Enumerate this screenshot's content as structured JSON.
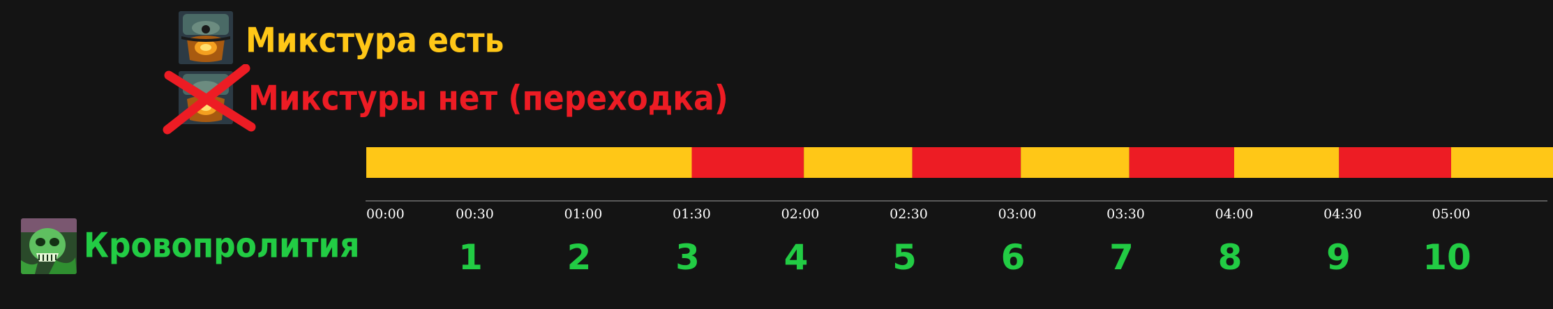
{
  "legend": {
    "has_mixture_label": "Микстура есть",
    "no_mixture_label": "Микстуры нет (переходка)",
    "has_mixture_icon": "mixture-cauldron-icon",
    "no_mixture_icon": "mixture-cauldron-crossed-icon",
    "colors": {
      "has": "#ffc717",
      "none": "#ed1c24"
    }
  },
  "ability": {
    "label": "Кровопролития",
    "icon": "bloodshed-skull-icon",
    "color": "#22cc44"
  },
  "chart_data": {
    "type": "timeline",
    "x_unit": "mm:ss",
    "xlim": [
      "00:00",
      "05:45"
    ],
    "ticks": [
      "00:00",
      "00:30",
      "01:00",
      "01:30",
      "02:00",
      "02:30",
      "03:00",
      "03:30",
      "04:00",
      "04:30",
      "05:00"
    ],
    "segments": [
      {
        "start": "00:00",
        "end": "01:30",
        "state": "has"
      },
      {
        "start": "01:30",
        "end": "02:01",
        "state": "none"
      },
      {
        "start": "02:01",
        "end": "02:31",
        "state": "has"
      },
      {
        "start": "02:31",
        "end": "03:01",
        "state": "none"
      },
      {
        "start": "03:01",
        "end": "03:31",
        "state": "has"
      },
      {
        "start": "03:31",
        "end": "04:00",
        "state": "none"
      },
      {
        "start": "04:00",
        "end": "04:29",
        "state": "has"
      },
      {
        "start": "04:29",
        "end": "05:00",
        "state": "none"
      },
      {
        "start": "05:00",
        "end": "05:48",
        "state": "has"
      }
    ],
    "events": [
      {
        "label": "1",
        "time": "00:30"
      },
      {
        "label": "2",
        "time": "01:00"
      },
      {
        "label": "3",
        "time": "01:30"
      },
      {
        "label": "4",
        "time": "02:00"
      },
      {
        "label": "5",
        "time": "02:30"
      },
      {
        "label": "6",
        "time": "03:00"
      },
      {
        "label": "7",
        "time": "03:30"
      },
      {
        "label": "8",
        "time": "04:00"
      },
      {
        "label": "9",
        "time": "04:30"
      },
      {
        "label": "10",
        "time": "05:00"
      }
    ]
  }
}
